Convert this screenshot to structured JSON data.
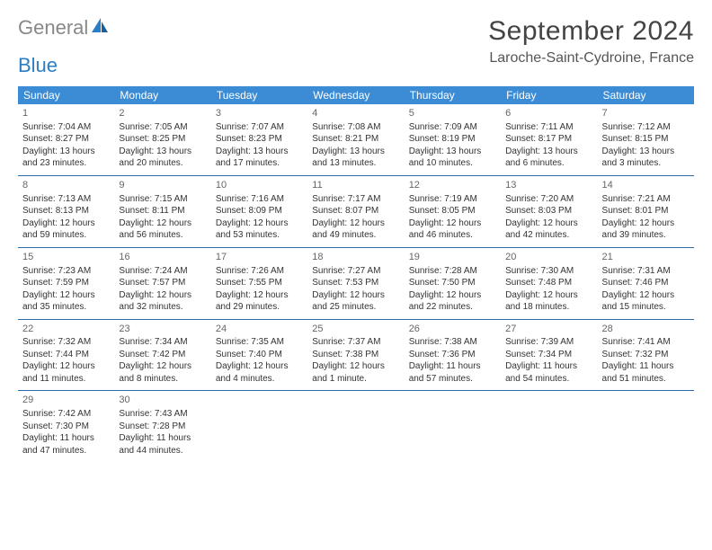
{
  "logo": {
    "text1": "General",
    "text2": "Blue"
  },
  "title": "September 2024",
  "location": "Laroche-Saint-Cydroine, France",
  "colors": {
    "header_bg": "#3b8cd4",
    "row_border": "#2a6aa8",
    "logo_blue": "#2a7ec6"
  },
  "weekday_headers": [
    "Sunday",
    "Monday",
    "Tuesday",
    "Wednesday",
    "Thursday",
    "Friday",
    "Saturday"
  ],
  "weeks": [
    [
      {
        "day": "1",
        "sunrise": "Sunrise: 7:04 AM",
        "sunset": "Sunset: 8:27 PM",
        "daylight": "Daylight: 13 hours and 23 minutes."
      },
      {
        "day": "2",
        "sunrise": "Sunrise: 7:05 AM",
        "sunset": "Sunset: 8:25 PM",
        "daylight": "Daylight: 13 hours and 20 minutes."
      },
      {
        "day": "3",
        "sunrise": "Sunrise: 7:07 AM",
        "sunset": "Sunset: 8:23 PM",
        "daylight": "Daylight: 13 hours and 17 minutes."
      },
      {
        "day": "4",
        "sunrise": "Sunrise: 7:08 AM",
        "sunset": "Sunset: 8:21 PM",
        "daylight": "Daylight: 13 hours and 13 minutes."
      },
      {
        "day": "5",
        "sunrise": "Sunrise: 7:09 AM",
        "sunset": "Sunset: 8:19 PM",
        "daylight": "Daylight: 13 hours and 10 minutes."
      },
      {
        "day": "6",
        "sunrise": "Sunrise: 7:11 AM",
        "sunset": "Sunset: 8:17 PM",
        "daylight": "Daylight: 13 hours and 6 minutes."
      },
      {
        "day": "7",
        "sunrise": "Sunrise: 7:12 AM",
        "sunset": "Sunset: 8:15 PM",
        "daylight": "Daylight: 13 hours and 3 minutes."
      }
    ],
    [
      {
        "day": "8",
        "sunrise": "Sunrise: 7:13 AM",
        "sunset": "Sunset: 8:13 PM",
        "daylight": "Daylight: 12 hours and 59 minutes."
      },
      {
        "day": "9",
        "sunrise": "Sunrise: 7:15 AM",
        "sunset": "Sunset: 8:11 PM",
        "daylight": "Daylight: 12 hours and 56 minutes."
      },
      {
        "day": "10",
        "sunrise": "Sunrise: 7:16 AM",
        "sunset": "Sunset: 8:09 PM",
        "daylight": "Daylight: 12 hours and 53 minutes."
      },
      {
        "day": "11",
        "sunrise": "Sunrise: 7:17 AM",
        "sunset": "Sunset: 8:07 PM",
        "daylight": "Daylight: 12 hours and 49 minutes."
      },
      {
        "day": "12",
        "sunrise": "Sunrise: 7:19 AM",
        "sunset": "Sunset: 8:05 PM",
        "daylight": "Daylight: 12 hours and 46 minutes."
      },
      {
        "day": "13",
        "sunrise": "Sunrise: 7:20 AM",
        "sunset": "Sunset: 8:03 PM",
        "daylight": "Daylight: 12 hours and 42 minutes."
      },
      {
        "day": "14",
        "sunrise": "Sunrise: 7:21 AM",
        "sunset": "Sunset: 8:01 PM",
        "daylight": "Daylight: 12 hours and 39 minutes."
      }
    ],
    [
      {
        "day": "15",
        "sunrise": "Sunrise: 7:23 AM",
        "sunset": "Sunset: 7:59 PM",
        "daylight": "Daylight: 12 hours and 35 minutes."
      },
      {
        "day": "16",
        "sunrise": "Sunrise: 7:24 AM",
        "sunset": "Sunset: 7:57 PM",
        "daylight": "Daylight: 12 hours and 32 minutes."
      },
      {
        "day": "17",
        "sunrise": "Sunrise: 7:26 AM",
        "sunset": "Sunset: 7:55 PM",
        "daylight": "Daylight: 12 hours and 29 minutes."
      },
      {
        "day": "18",
        "sunrise": "Sunrise: 7:27 AM",
        "sunset": "Sunset: 7:53 PM",
        "daylight": "Daylight: 12 hours and 25 minutes."
      },
      {
        "day": "19",
        "sunrise": "Sunrise: 7:28 AM",
        "sunset": "Sunset: 7:50 PM",
        "daylight": "Daylight: 12 hours and 22 minutes."
      },
      {
        "day": "20",
        "sunrise": "Sunrise: 7:30 AM",
        "sunset": "Sunset: 7:48 PM",
        "daylight": "Daylight: 12 hours and 18 minutes."
      },
      {
        "day": "21",
        "sunrise": "Sunrise: 7:31 AM",
        "sunset": "Sunset: 7:46 PM",
        "daylight": "Daylight: 12 hours and 15 minutes."
      }
    ],
    [
      {
        "day": "22",
        "sunrise": "Sunrise: 7:32 AM",
        "sunset": "Sunset: 7:44 PM",
        "daylight": "Daylight: 12 hours and 11 minutes."
      },
      {
        "day": "23",
        "sunrise": "Sunrise: 7:34 AM",
        "sunset": "Sunset: 7:42 PM",
        "daylight": "Daylight: 12 hours and 8 minutes."
      },
      {
        "day": "24",
        "sunrise": "Sunrise: 7:35 AM",
        "sunset": "Sunset: 7:40 PM",
        "daylight": "Daylight: 12 hours and 4 minutes."
      },
      {
        "day": "25",
        "sunrise": "Sunrise: 7:37 AM",
        "sunset": "Sunset: 7:38 PM",
        "daylight": "Daylight: 12 hours and 1 minute."
      },
      {
        "day": "26",
        "sunrise": "Sunrise: 7:38 AM",
        "sunset": "Sunset: 7:36 PM",
        "daylight": "Daylight: 11 hours and 57 minutes."
      },
      {
        "day": "27",
        "sunrise": "Sunrise: 7:39 AM",
        "sunset": "Sunset: 7:34 PM",
        "daylight": "Daylight: 11 hours and 54 minutes."
      },
      {
        "day": "28",
        "sunrise": "Sunrise: 7:41 AM",
        "sunset": "Sunset: 7:32 PM",
        "daylight": "Daylight: 11 hours and 51 minutes."
      }
    ],
    [
      {
        "day": "29",
        "sunrise": "Sunrise: 7:42 AM",
        "sunset": "Sunset: 7:30 PM",
        "daylight": "Daylight: 11 hours and 47 minutes."
      },
      {
        "day": "30",
        "sunrise": "Sunrise: 7:43 AM",
        "sunset": "Sunset: 7:28 PM",
        "daylight": "Daylight: 11 hours and 44 minutes."
      },
      null,
      null,
      null,
      null,
      null
    ]
  ]
}
